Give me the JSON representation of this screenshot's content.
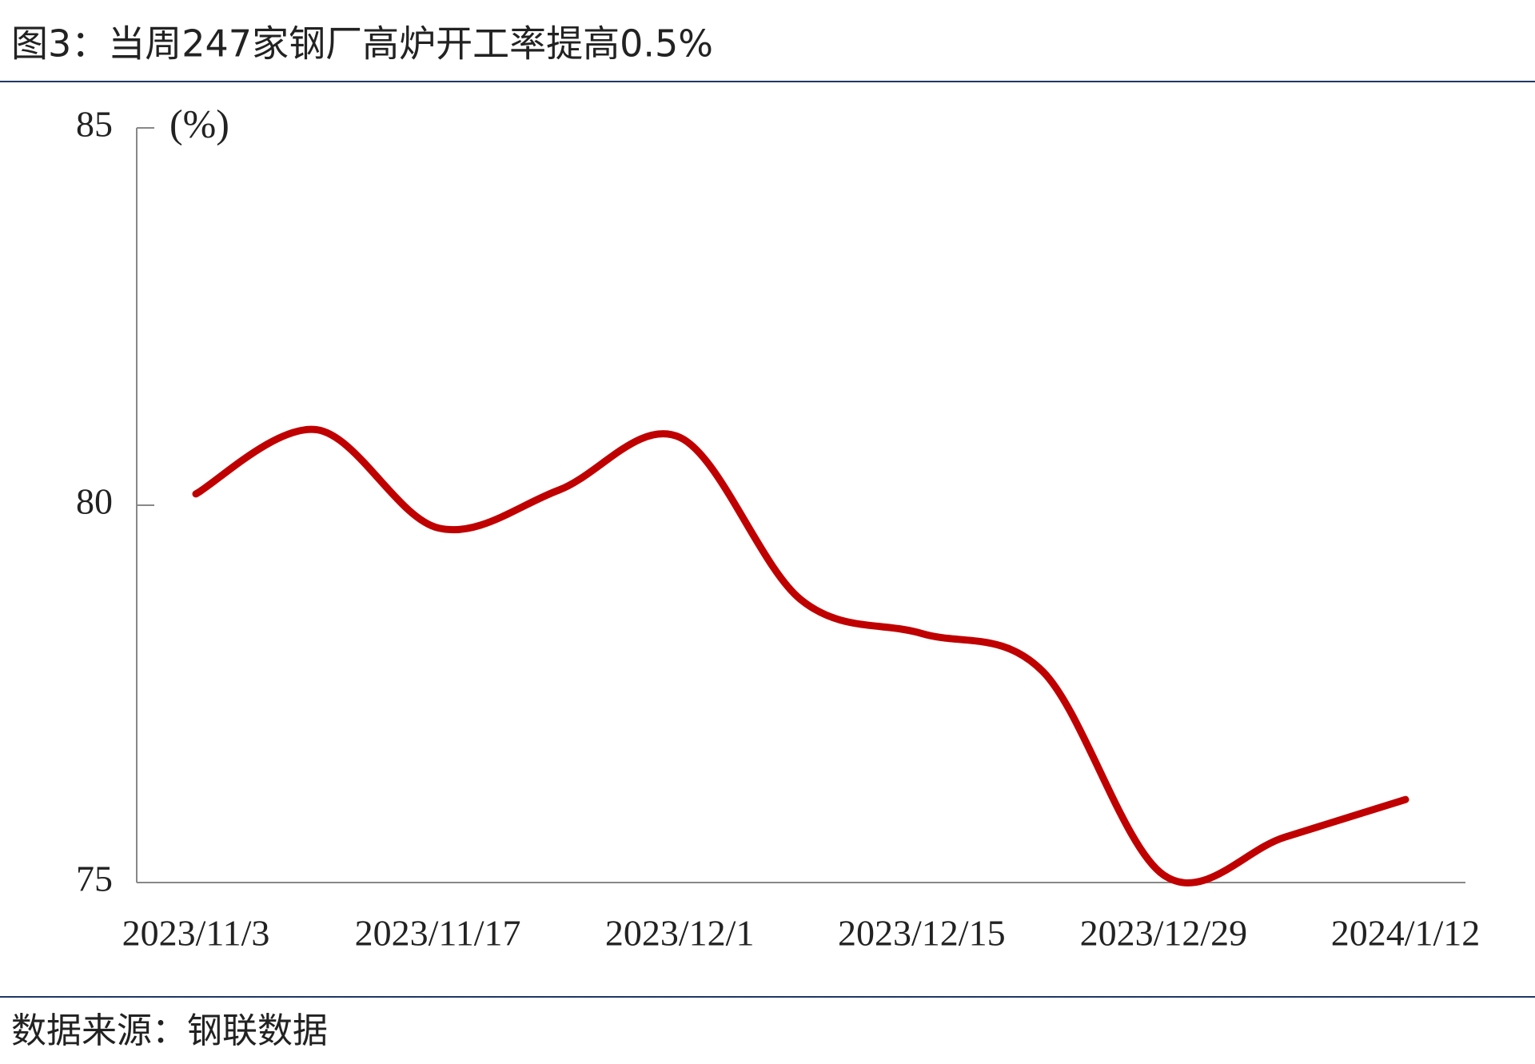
{
  "chart_data": {
    "type": "line",
    "title": "图3：当周247家钢厂高炉开工率提高0.5%",
    "y_label": "(%)",
    "source": "数据来源：钢联数据",
    "categories": [
      "2023/11/3",
      null,
      "2023/11/17",
      null,
      "2023/12/1",
      null,
      "2023/12/15",
      null,
      "2023/12/29",
      null,
      "2024/1/12"
    ],
    "series": [
      {
        "name": "高炉开工率",
        "color": "#c00000",
        "values": [
          80.15,
          81.0,
          79.7,
          80.2,
          80.9,
          78.75,
          78.3,
          77.8,
          75.1,
          75.6,
          76.1
        ]
      }
    ],
    "ylim": [
      75,
      85
    ],
    "yticks": [
      75,
      80,
      85
    ],
    "grid": false,
    "smooth": true
  }
}
